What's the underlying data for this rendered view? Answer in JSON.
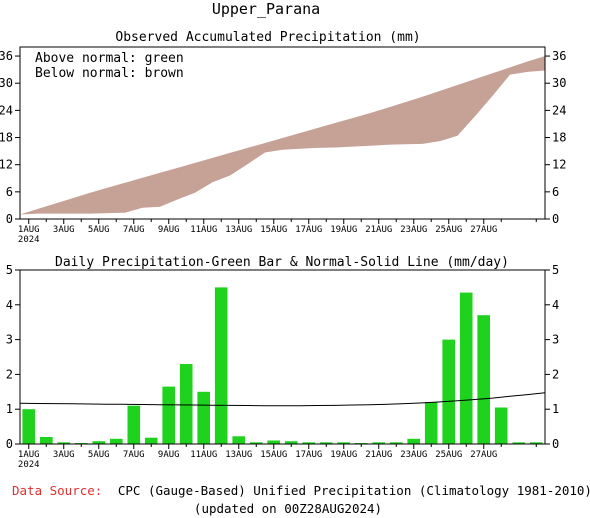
{
  "title": "Upper_Parana",
  "footer": {
    "source_label": "Data Source:",
    "source_text": "CPC (Gauge-Based) Unified Precipitation (Climatology 1981-2010)",
    "updated": "(updated on 00Z28AUG2024)"
  },
  "colors": {
    "source_label": "#e03030",
    "accum_fill": "#c6a196",
    "bar_fill": "#1ed21e",
    "normal_line": "#000000"
  },
  "chart_data": [
    {
      "type": "area",
      "title": "Observed Accumulated Precipitation (mm)",
      "legend": [
        "Above normal: green",
        "Below normal: brown"
      ],
      "legend_position": "top-left",
      "grid": false,
      "x": [
        1,
        2,
        3,
        4,
        5,
        6,
        7,
        8,
        9,
        10,
        11,
        12,
        13,
        14,
        15,
        16,
        17,
        18,
        19,
        20,
        21,
        22,
        23,
        24,
        25,
        26,
        27,
        28
      ],
      "observed": [
        1.0,
        1.2,
        1.2,
        1.2,
        1.2,
        1.3,
        1.4,
        2.5,
        2.7,
        4.3,
        5.8,
        8.1,
        9.6,
        12.1,
        14.7,
        15.3,
        15.5,
        15.7,
        15.8,
        16.0,
        16.2,
        16.4,
        16.5,
        16.6,
        17.2,
        18.4,
        22.7,
        27.2,
        31.9,
        32.5,
        32.8
      ],
      "normal": [
        1.0,
        2.2,
        3.4,
        4.6,
        5.8,
        6.9,
        8.0,
        9.1,
        10.2,
        11.3,
        12.4,
        13.5,
        14.6,
        15.7,
        16.8,
        17.9,
        19.0,
        20.1,
        21.2,
        22.3,
        23.4,
        24.6,
        25.8,
        27.0,
        28.3,
        29.6,
        30.9,
        32.2,
        33.5,
        34.8,
        36.0
      ],
      "observed_x": [
        0,
        1,
        2,
        3,
        4,
        5,
        6,
        7,
        8,
        9,
        10,
        11,
        12,
        13,
        14,
        15,
        16,
        17,
        18,
        19,
        20,
        21,
        22,
        23,
        24,
        25,
        26,
        27,
        28,
        29,
        30
      ],
      "ylim": [
        0,
        38
      ],
      "yticks": [
        0,
        6,
        12,
        18,
        24,
        30,
        36
      ]
    },
    {
      "type": "bar",
      "title": "Daily Precipitation-Green Bar & Normal-Solid Line (mm/day)",
      "grid": false,
      "values": [
        1.0,
        0.2,
        0.05,
        0.03,
        0.08,
        0.15,
        1.1,
        0.18,
        1.65,
        2.3,
        1.5,
        4.5,
        0.22,
        0.05,
        0.1,
        0.08,
        0.05,
        0.05,
        0.05,
        0.03,
        0.05,
        0.05,
        0.15,
        1.2,
        3.0,
        4.35,
        3.7,
        1.05,
        0.05,
        0.05
      ],
      "normal": [
        1.17,
        1.165,
        1.16,
        1.155,
        1.15,
        1.145,
        1.14,
        1.135,
        1.13,
        1.125,
        1.12,
        1.115,
        1.11,
        1.105,
        1.1,
        1.1,
        1.1,
        1.105,
        1.11,
        1.12,
        1.13,
        1.14,
        1.16,
        1.18,
        1.21,
        1.24,
        1.28,
        1.32,
        1.37,
        1.42,
        1.47
      ],
      "ylim": [
        0,
        5
      ],
      "yticks": [
        0,
        1,
        2,
        3,
        4,
        5
      ]
    }
  ],
  "x_axis": {
    "tick_labels": [
      "1AUG",
      "3AUG",
      "5AUG",
      "7AUG",
      "9AUG",
      "11AUG",
      "13AUG",
      "15AUG",
      "17AUG",
      "19AUG",
      "21AUG",
      "23AUG",
      "25AUG",
      "27AUG"
    ],
    "tick_days": [
      1,
      3,
      5,
      7,
      9,
      11,
      13,
      15,
      17,
      19,
      21,
      23,
      25,
      27
    ],
    "year_label": "2024"
  }
}
